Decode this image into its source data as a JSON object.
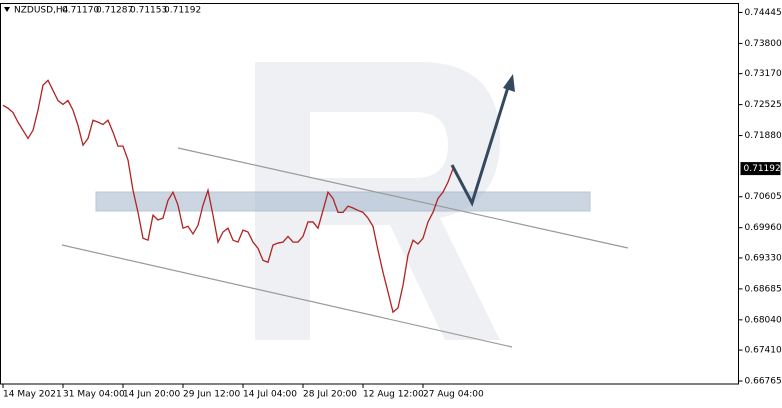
{
  "header": {
    "symbol": "NZDUSD,H4",
    "ohlc": [
      "0.71170",
      "0.71287",
      "0.71153",
      "0.71192"
    ]
  },
  "chart_data": {
    "type": "line",
    "series": [
      {
        "color": "#b22222",
        "values": [
          0.7251,
          0.7245,
          0.7236,
          0.7216,
          0.7199,
          0.7182,
          0.7199,
          0.7241,
          0.7293,
          0.7303,
          0.7282,
          0.7261,
          0.7253,
          0.7261,
          0.7241,
          0.7209,
          0.7168,
          0.7182,
          0.722,
          0.7216,
          0.7211,
          0.722,
          0.7195,
          0.7166,
          0.7166,
          0.7137,
          0.7074,
          0.7028,
          0.6974,
          0.697,
          0.7022,
          0.7012,
          0.7016,
          0.7053,
          0.707,
          0.7043,
          0.6995,
          0.6999,
          0.6983,
          0.7001,
          0.7043,
          0.7074,
          0.7022,
          0.6966,
          0.6987,
          0.6995,
          0.697,
          0.6966,
          0.6991,
          0.6987,
          0.6966,
          0.6953,
          0.6928,
          0.6924,
          0.696,
          0.6964,
          0.6966,
          0.6978,
          0.6966,
          0.6966,
          0.6978,
          0.7008,
          0.7008,
          0.6995,
          0.7032,
          0.707,
          0.7057,
          0.7028,
          0.7028,
          0.7041,
          0.7037,
          0.7032,
          0.7028,
          0.7016,
          0.6999,
          0.6949,
          0.6903,
          0.6862,
          0.682,
          0.6829,
          0.6876,
          0.6939,
          0.697,
          0.6962,
          0.6974,
          0.7008,
          0.7028,
          0.7057,
          0.707,
          0.7091,
          0.7119
        ]
      }
    ],
    "last_price": {
      "value": 0.71192,
      "label": "0.71192"
    },
    "ylim": [
      0.66703,
      0.74632
    ],
    "yticks": [
      0.74445,
      {
        "value": 0.738,
        "label": "0.73800"
      },
      {
        "value": 0.7317,
        "label": "0.73170"
      },
      0.72525,
      {
        "value": 0.7188,
        "label": "0.71880"
      },
      0.70605,
      {
        "value": 0.6996,
        "label": "0.69960"
      },
      {
        "value": 0.6933,
        "label": "0.69330"
      },
      0.68685,
      {
        "value": 0.6804,
        "label": "0.68040"
      },
      {
        "value": 0.6741,
        "label": "0.67410"
      },
      0.66765
    ],
    "xticks": [
      {
        "value": 0,
        "label": "14 May 2021"
      },
      {
        "value": 12,
        "label": "31 May 04:00"
      },
      {
        "value": 24,
        "label": "14 Jun 20:00"
      },
      {
        "value": 36,
        "label": "29 Jun 12:00"
      },
      {
        "value": 48,
        "label": "14 Jul 04:00"
      },
      {
        "value": 60,
        "label": "28 Jul 20:00"
      },
      {
        "value": 72,
        "label": "12 Aug 12:00"
      },
      {
        "value": 84,
        "label": "27 Aug 04:00"
      }
    ]
  }
}
